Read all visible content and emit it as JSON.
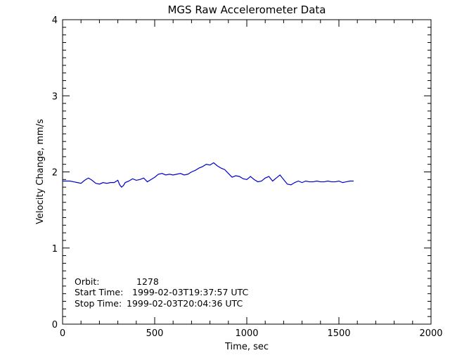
{
  "chart_data": {
    "type": "line",
    "title": "MGS Raw Accelerometer Data",
    "xlabel": "Time, sec",
    "ylabel": "Velocity Change, mm/s",
    "xlim": [
      0,
      2000
    ],
    "ylim": [
      0,
      4
    ],
    "xticks": [
      0,
      500,
      1000,
      1500,
      2000
    ],
    "xtick_labels": [
      "0",
      "500",
      "1000",
      "1500",
      "2000"
    ],
    "yticks": [
      0,
      1,
      2,
      3,
      4
    ],
    "ytick_labels": [
      "0",
      "1",
      "2",
      "3",
      "4"
    ],
    "grid": false,
    "line_color": "#0000cc",
    "series": [
      {
        "x": [
          0,
          20,
          40,
          60,
          80,
          100,
          120,
          140,
          160,
          180,
          200,
          220,
          240,
          260,
          280,
          300,
          310,
          320,
          330,
          340,
          360,
          380,
          400,
          420,
          440,
          460,
          480,
          500,
          520,
          540,
          560,
          580,
          600,
          620,
          640,
          660,
          680,
          700,
          720,
          740,
          760,
          780,
          800,
          820,
          840,
          860,
          880,
          900,
          920,
          940,
          960,
          980,
          1000,
          1020,
          1040,
          1060,
          1080,
          1100,
          1120,
          1140,
          1160,
          1180,
          1200,
          1220,
          1240,
          1260,
          1280,
          1300,
          1320,
          1340,
          1360,
          1380,
          1400,
          1420,
          1440,
          1460,
          1480,
          1500,
          1520,
          1540,
          1560,
          1580
        ],
        "y": [
          1.88,
          1.88,
          1.88,
          1.87,
          1.86,
          1.85,
          1.89,
          1.92,
          1.89,
          1.85,
          1.84,
          1.86,
          1.85,
          1.86,
          1.86,
          1.89,
          1.83,
          1.8,
          1.82,
          1.86,
          1.88,
          1.91,
          1.89,
          1.9,
          1.92,
          1.87,
          1.9,
          1.93,
          1.97,
          1.98,
          1.96,
          1.97,
          1.96,
          1.97,
          1.98,
          1.96,
          1.97,
          2.0,
          2.02,
          2.05,
          2.07,
          2.1,
          2.09,
          2.12,
          2.08,
          2.05,
          2.03,
          1.98,
          1.93,
          1.95,
          1.94,
          1.91,
          1.9,
          1.94,
          1.9,
          1.87,
          1.88,
          1.92,
          1.94,
          1.88,
          1.92,
          1.96,
          1.9,
          1.84,
          1.83,
          1.86,
          1.88,
          1.86,
          1.88,
          1.87,
          1.87,
          1.88,
          1.87,
          1.87,
          1.88,
          1.87,
          1.87,
          1.88,
          1.86,
          1.87,
          1.88,
          1.88
        ]
      }
    ],
    "annotations": [
      {
        "label": "Orbit:",
        "value": "1278"
      },
      {
        "label": "Start Time:",
        "value": "1999-02-03T19:37:57 UTC"
      },
      {
        "label": "Stop Time:",
        "value": "1999-02-03T20:04:36 UTC"
      }
    ]
  }
}
